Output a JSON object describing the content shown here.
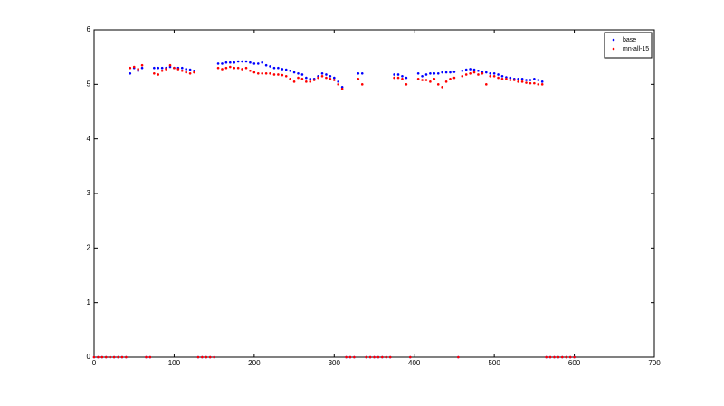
{
  "chart_data": {
    "type": "scatter",
    "x": [
      0,
      5,
      10,
      15,
      20,
      25,
      30,
      35,
      40,
      45,
      50,
      55,
      60,
      65,
      70,
      75,
      80,
      85,
      90,
      95,
      100,
      105,
      110,
      115,
      120,
      125,
      130,
      135,
      140,
      145,
      150,
      155,
      160,
      165,
      170,
      175,
      180,
      185,
      190,
      195,
      200,
      205,
      210,
      215,
      220,
      225,
      230,
      235,
      240,
      245,
      250,
      255,
      260,
      265,
      270,
      275,
      280,
      285,
      290,
      295,
      300,
      305,
      310,
      315,
      320,
      325,
      330,
      335,
      340,
      345,
      350,
      355,
      360,
      365,
      370,
      375,
      380,
      385,
      390,
      395,
      400,
      405,
      410,
      415,
      420,
      425,
      430,
      435,
      440,
      445,
      450,
      455,
      460,
      465,
      470,
      475,
      480,
      485,
      490,
      495,
      500,
      505,
      510,
      515,
      520,
      525,
      530,
      535,
      540,
      545,
      550,
      555,
      560,
      565,
      570,
      575,
      580,
      585,
      590,
      595,
      600
    ],
    "series": [
      {
        "name": "base",
        "color": "#0000ff",
        "values": [
          0,
          0,
          0,
          0,
          0,
          0,
          0,
          0,
          0,
          5.2,
          5.3,
          5.25,
          5.3,
          0,
          0,
          5.3,
          5.3,
          5.3,
          5.3,
          5.32,
          5.3,
          5.3,
          5.3,
          5.28,
          5.27,
          5.25,
          0,
          0,
          0,
          0,
          0,
          5.38,
          5.38,
          5.4,
          5.4,
          5.4,
          5.42,
          5.42,
          5.42,
          5.4,
          5.38,
          5.38,
          5.4,
          5.35,
          5.33,
          5.3,
          5.3,
          5.28,
          5.27,
          5.25,
          5.22,
          5.2,
          5.18,
          5.12,
          5.1,
          5.1,
          5.15,
          5.2,
          5.18,
          5.15,
          5.12,
          5.05,
          4.95,
          0,
          0,
          0,
          5.2,
          5.2,
          0,
          0,
          0,
          0,
          0,
          0,
          0,
          5.18,
          5.18,
          5.15,
          5.12,
          0,
          null,
          5.2,
          5.15,
          5.18,
          5.2,
          5.2,
          5.2,
          5.22,
          5.22,
          5.22,
          5.23,
          0,
          5.25,
          5.27,
          5.28,
          5.27,
          5.25,
          5.22,
          5.22,
          5.2,
          5.2,
          5.18,
          5.15,
          5.13,
          5.12,
          5.1,
          5.1,
          5.1,
          5.08,
          5.08,
          5.1,
          5.08,
          5.05,
          0,
          0,
          0,
          0,
          0,
          0,
          0,
          0
        ]
      },
      {
        "name": "mn-all-15",
        "color": "#ff0000",
        "values": [
          0,
          0,
          0,
          0,
          0,
          0,
          0,
          0,
          0,
          5.3,
          5.32,
          5.28,
          5.35,
          0,
          0,
          5.2,
          5.18,
          5.25,
          5.28,
          5.35,
          5.3,
          5.28,
          5.25,
          5.22,
          5.2,
          5.22,
          0,
          0,
          0,
          0,
          0,
          5.3,
          5.28,
          5.3,
          5.32,
          5.3,
          5.3,
          5.28,
          5.3,
          5.25,
          5.22,
          5.2,
          5.2,
          5.2,
          5.2,
          5.18,
          5.18,
          5.17,
          5.15,
          5.1,
          5.05,
          5.12,
          5.1,
          5.05,
          5.05,
          5.08,
          5.12,
          5.15,
          5.12,
          5.1,
          5.08,
          5.0,
          4.92,
          0,
          0,
          0,
          5.1,
          5.0,
          0,
          0,
          0,
          0,
          0,
          0,
          0,
          5.12,
          5.12,
          5.1,
          5.0,
          0,
          null,
          5.1,
          5.08,
          5.08,
          5.05,
          5.1,
          5.0,
          4.95,
          5.05,
          5.1,
          5.12,
          0,
          5.15,
          5.18,
          5.2,
          5.22,
          5.18,
          5.2,
          5.0,
          5.15,
          5.15,
          5.12,
          5.1,
          5.1,
          5.08,
          5.08,
          5.05,
          5.05,
          5.03,
          5.02,
          5.02,
          5.0,
          5.0,
          0,
          0,
          0,
          0,
          0,
          0,
          0,
          0
        ]
      }
    ],
    "xlim": [
      0,
      700
    ],
    "xticks": [
      0,
      100,
      200,
      300,
      400,
      500,
      600,
      700
    ],
    "ylim": [
      0,
      6
    ],
    "yticks": [
      0,
      1,
      2,
      3,
      4,
      5,
      6
    ],
    "legend": "upper right"
  }
}
